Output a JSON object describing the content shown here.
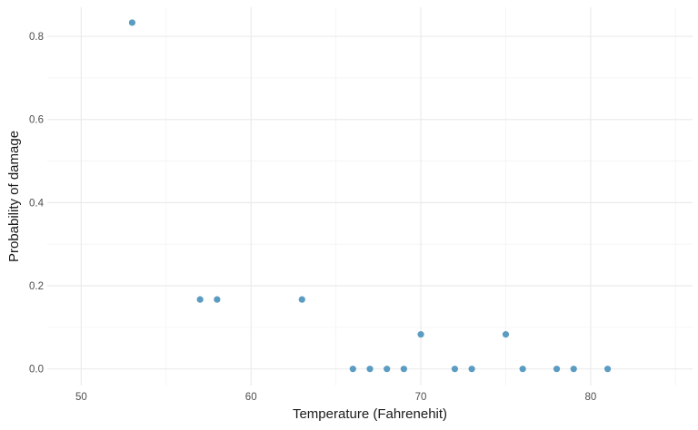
{
  "chart_data": {
    "type": "scatter",
    "title": "",
    "xlabel": "Temperature (Fahrenehit)",
    "ylabel": "Probability of damage",
    "xlim": [
      48,
      86
    ],
    "ylim": [
      -0.04,
      0.87
    ],
    "x_ticks": [
      50,
      60,
      70,
      80
    ],
    "y_ticks": [
      0.0,
      0.2,
      0.4,
      0.6,
      0.8
    ],
    "x_tick_labels": [
      "50",
      "60",
      "70",
      "80"
    ],
    "y_tick_labels": [
      "0.0",
      "0.2",
      "0.4",
      "0.6",
      "0.8"
    ],
    "x_minor_ticks": [
      55,
      65,
      75,
      85
    ],
    "y_minor_ticks": [
      0.1,
      0.3,
      0.5,
      0.7
    ],
    "grid": true,
    "point_color": "#5b9cc2",
    "points": [
      {
        "x": 53,
        "y": 0.833
      },
      {
        "x": 57,
        "y": 0.167
      },
      {
        "x": 58,
        "y": 0.167
      },
      {
        "x": 63,
        "y": 0.167
      },
      {
        "x": 66,
        "y": 0.0
      },
      {
        "x": 67,
        "y": 0.0
      },
      {
        "x": 68,
        "y": 0.0
      },
      {
        "x": 69,
        "y": 0.0
      },
      {
        "x": 70,
        "y": 0.083
      },
      {
        "x": 72,
        "y": 0.0
      },
      {
        "x": 73,
        "y": 0.0
      },
      {
        "x": 75,
        "y": 0.083
      },
      {
        "x": 76,
        "y": 0.0
      },
      {
        "x": 78,
        "y": 0.0
      },
      {
        "x": 79,
        "y": 0.0
      },
      {
        "x": 81,
        "y": 0.0
      }
    ]
  }
}
